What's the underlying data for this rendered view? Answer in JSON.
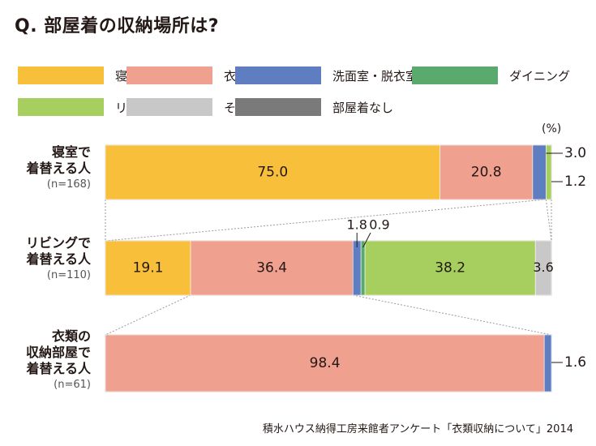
{
  "title": "Q. 部屋着の収納場所は?",
  "unit": "(%)",
  "source": "積水ハウス納得工房来館者アンケート「衣類収納について」2014",
  "legend": [
    {
      "label": "寝　室",
      "color": "#f8bf3a"
    },
    {
      "label": "衣類の収納部屋",
      "color": "#f0a08f"
    },
    {
      "label": "洗面室・脱衣室",
      "color": "#5e7ec1"
    },
    {
      "label": "ダイニング",
      "color": "#5aaa6e"
    },
    {
      "label": "リビング",
      "color": "#a7cf5f"
    },
    {
      "label": "その他",
      "color": "#c8c8c8"
    },
    {
      "label": "部屋着なし",
      "color": "#7a7a7a"
    }
  ],
  "chart_data": {
    "type": "bar",
    "orientation": "horizontal-stacked",
    "unit": "%",
    "series_names": [
      "寝　室",
      "衣類の収納部屋",
      "洗面室・脱衣室",
      "ダイニング",
      "リビング",
      "その他",
      "部屋着なし"
    ],
    "rows": [
      {
        "label_lines": [
          "寝室で",
          "着替える人"
        ],
        "n": "(n=168)",
        "values": [
          75.0,
          20.8,
          3.0,
          0,
          1.2,
          0,
          0
        ],
        "labels": [
          "75.0",
          "20.8",
          "3.0",
          "",
          "1.2",
          "",
          ""
        ]
      },
      {
        "label_lines": [
          "リビングで",
          "着替える人"
        ],
        "n": "(n=110)",
        "values": [
          19.1,
          36.4,
          1.8,
          0.9,
          38.2,
          3.6,
          0
        ],
        "labels": [
          "19.1",
          "36.4",
          "1.8",
          "0.9",
          "38.2",
          "3.6",
          ""
        ]
      },
      {
        "label_lines": [
          "衣類の",
          "収納部屋で",
          "着替える人"
        ],
        "n": "(n=61)",
        "values": [
          0,
          98.4,
          1.6,
          0,
          0,
          0,
          0
        ],
        "labels": [
          "",
          "98.4",
          "1.6",
          "",
          "",
          "",
          ""
        ]
      }
    ]
  }
}
